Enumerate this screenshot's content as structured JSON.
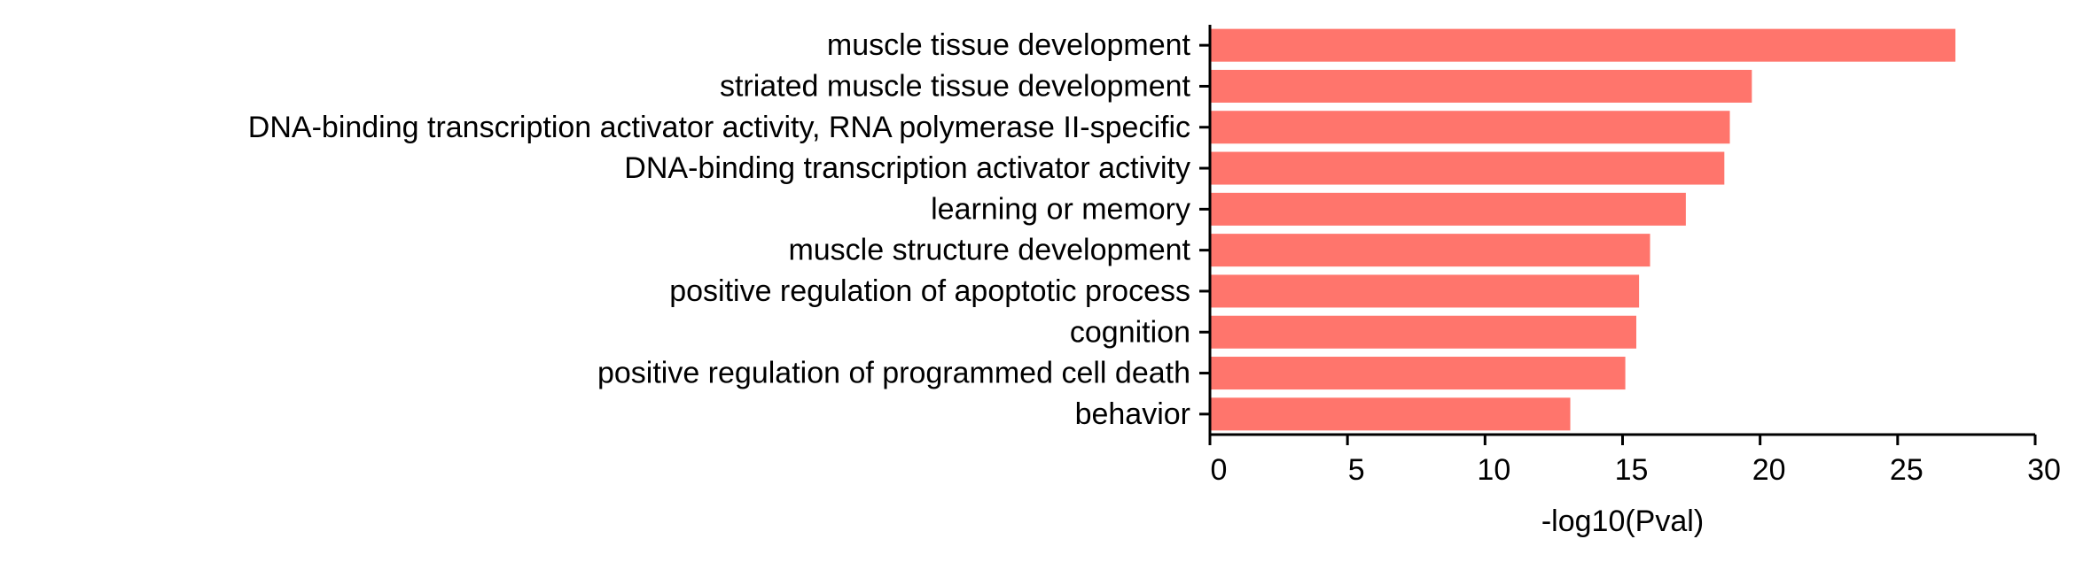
{
  "chart_data": {
    "type": "bar",
    "orientation": "horizontal",
    "categories": [
      "muscle tissue development",
      "striated muscle tissue development",
      "DNA-binding transcription activator activity, RNA polymerase II-specific",
      "DNA-binding transcription activator activity",
      "learning or memory",
      "muscle structure development",
      "positive regulation of apoptotic process",
      "cognition",
      "positive regulation of programmed cell death",
      "behavior"
    ],
    "values": [
      27.1,
      19.7,
      18.9,
      18.7,
      17.3,
      16.0,
      15.6,
      15.5,
      15.1,
      13.1
    ],
    "xlabel": "-log10(Pval)",
    "ylabel": "",
    "xlim": [
      0,
      30
    ],
    "xticks": [
      "0",
      "5",
      "10",
      "15",
      "20",
      "25",
      "30"
    ],
    "bar_color": "#FF756C",
    "grid": false,
    "legend": "none"
  }
}
